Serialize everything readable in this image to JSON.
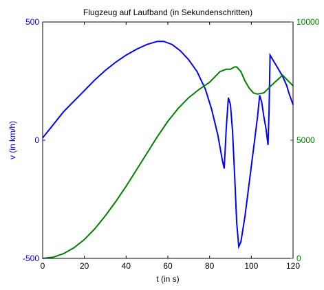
{
  "chart_data": {
    "type": "line",
    "title": "Flugzeug auf Laufband (in Sekundenschritten)",
    "xlabel": "t (in s)",
    "ylabel_left": "v (in km/h)",
    "ylabel_right": "",
    "xlim": [
      0,
      120
    ],
    "ylim_left": [
      -500,
      500
    ],
    "ylim_right": [
      0,
      10000
    ],
    "xticks": [
      "0",
      "20",
      "40",
      "60",
      "80",
      "100",
      "120"
    ],
    "yticks_left": [
      "-500",
      "0",
      "500"
    ],
    "yticks_right": [
      "0",
      "5000",
      "10000"
    ],
    "grid": false,
    "colors": {
      "left": "#0000ff",
      "right": "#007f00",
      "axes": "#000000"
    },
    "series": [
      {
        "axis": "left",
        "color": "#0000ff",
        "x": [
          0,
          5,
          10,
          15,
          20,
          25,
          30,
          35,
          40,
          45,
          50,
          55,
          58,
          62,
          66,
          70,
          74,
          78,
          81,
          84,
          86,
          87,
          88,
          89,
          90,
          91,
          92,
          93,
          94,
          95,
          97,
          99,
          101,
          103,
          104,
          105,
          106,
          107,
          108,
          108.5,
          109,
          111,
          113,
          115,
          117,
          118,
          120
        ],
        "y": [
          10,
          65,
          120,
          165,
          210,
          255,
          295,
          330,
          360,
          385,
          405,
          418,
          418,
          405,
          378,
          340,
          290,
          215,
          130,
          20,
          -80,
          -120,
          50,
          180,
          150,
          40,
          -150,
          -350,
          -450,
          -430,
          -320,
          -180,
          -40,
          100,
          190,
          160,
          100,
          50,
          -20,
          120,
          360,
          330,
          300,
          270,
          230,
          200,
          150
        ]
      },
      {
        "axis": "right",
        "color": "#007f00",
        "x": [
          0,
          5,
          10,
          15,
          20,
          25,
          30,
          35,
          40,
          45,
          50,
          55,
          60,
          65,
          70,
          75,
          80,
          85,
          88,
          90,
          92,
          93,
          95,
          97,
          99,
          101,
          103,
          106,
          110,
          115,
          120
        ],
        "y": [
          0,
          50,
          200,
          450,
          800,
          1250,
          1800,
          2400,
          3050,
          3750,
          4450,
          5150,
          5800,
          6350,
          6800,
          7150,
          7450,
          7900,
          8000,
          8000,
          8100,
          8100,
          7900,
          7500,
          7200,
          7000,
          6950,
          7000,
          7350,
          7750,
          7300
        ]
      }
    ]
  }
}
